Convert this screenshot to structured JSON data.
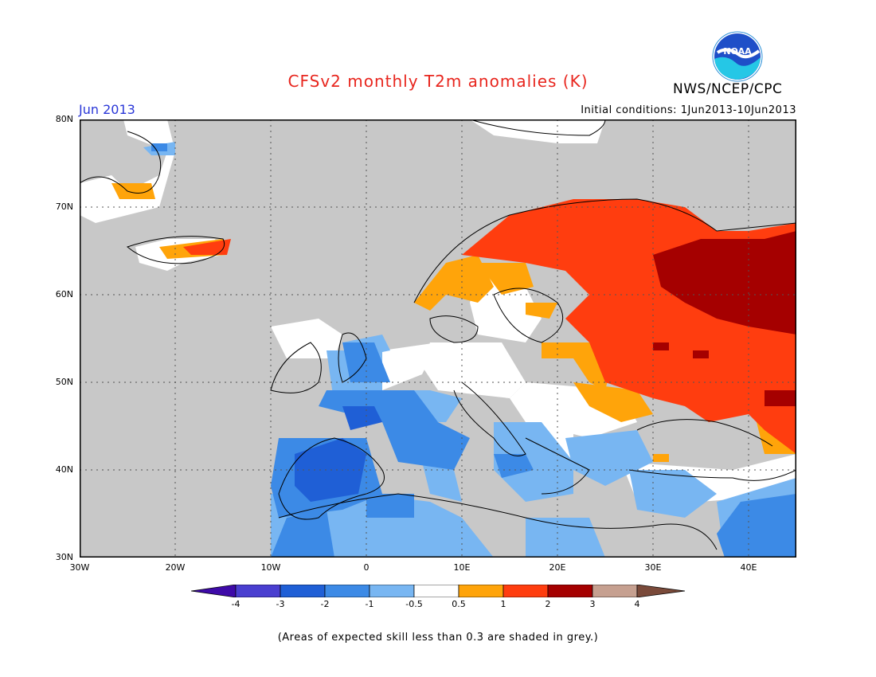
{
  "header": {
    "title": "CFSv2 monthly T2m anomalies (K)",
    "agency": "NWS/NCEP/CPC",
    "period": "Jun 2013",
    "initial_conditions": "Initial conditions: 1Jun2013-10Jun2013",
    "logo_text": "NOAA"
  },
  "map": {
    "lon_range": [
      -30,
      45
    ],
    "lat_range": [
      30,
      80
    ],
    "lat_labels": [
      "80N",
      "70N",
      "60N",
      "50N",
      "40N",
      "30N"
    ],
    "lon_labels": [
      "30W",
      "20W",
      "10W",
      "0",
      "10E",
      "20E",
      "30E",
      "40E"
    ],
    "background_color": "#c8c8c8"
  },
  "colorbar": {
    "labels": [
      "-4",
      "-3",
      "-2",
      "-1",
      "-0.5",
      "0.5",
      "1",
      "2",
      "3",
      "4"
    ],
    "colors": [
      "#3e0aa8",
      "#4a3fd0",
      "#1f5fd6",
      "#3c8ae6",
      "#78b6f2",
      "#ffffff",
      "#ffa40a",
      "#ff3d0f",
      "#a50000",
      "#c6a090",
      "#7a4a3a"
    ]
  },
  "footnote": "(Areas of expected skill less than 0.3 are shaded in grey.)"
}
